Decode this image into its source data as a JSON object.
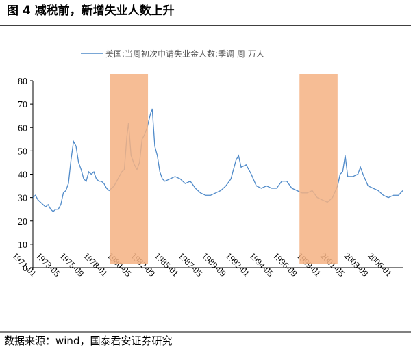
{
  "chart_data": {
    "type": "line",
    "title": "图 4    减税前，新增失业人数上升",
    "source": "数据来源：wind，国泰君安证券研究",
    "x": [
      "1971-01",
      "1971-04",
      "1971-07",
      "1971-10",
      "1972-01",
      "1972-04",
      "1972-07",
      "1972-10",
      "1973-01",
      "1973-04",
      "1973-07",
      "1973-10",
      "1974-01",
      "1974-04",
      "1974-07",
      "1974-10",
      "1975-01",
      "1975-04",
      "1975-07",
      "1975-10",
      "1976-01",
      "1976-04",
      "1976-07",
      "1976-10",
      "1977-01",
      "1977-04",
      "1977-07",
      "1977-10",
      "1978-01",
      "1978-04",
      "1978-07",
      "1978-10",
      "1979-01",
      "1979-04",
      "1979-07",
      "1979-10",
      "1980-01",
      "1980-04",
      "1980-06",
      "1980-09",
      "1981-01",
      "1981-04",
      "1981-07",
      "1981-10",
      "1982-01",
      "1982-04",
      "1982-08",
      "1982-10",
      "1983-01",
      "1983-04",
      "1983-07",
      "1983-10",
      "1984-01",
      "1984-07",
      "1985-01",
      "1985-07",
      "1986-01",
      "1986-07",
      "1987-01",
      "1987-07",
      "1988-01",
      "1988-07",
      "1989-01",
      "1989-07",
      "1990-01",
      "1990-07",
      "1991-01",
      "1991-04",
      "1991-07",
      "1992-01",
      "1992-04",
      "1992-07",
      "1993-01",
      "1993-07",
      "1994-01",
      "1994-07",
      "1995-01",
      "1995-07",
      "1996-01",
      "1996-07",
      "1997-01",
      "1997-07",
      "1998-01",
      "1998-07",
      "1999-01",
      "1999-07",
      "2000-01",
      "2000-07",
      "2001-01",
      "2001-04",
      "2001-07",
      "2001-10",
      "2002-01",
      "2002-07",
      "2003-01",
      "2003-04",
      "2003-07",
      "2004-01",
      "2004-07",
      "2005-01",
      "2005-07",
      "2006-01",
      "2006-07",
      "2007-01",
      "2007-06"
    ],
    "series": [
      {
        "name": "美国:当周初次申请失业金人数:季调 周 万人",
        "color": "#4f8ac9",
        "values": [
          30,
          31,
          29,
          28,
          27,
          26,
          27,
          25,
          24,
          25,
          25,
          27,
          32,
          33,
          36,
          46,
          54,
          52,
          45,
          42,
          38,
          37,
          41,
          40,
          41,
          38,
          37,
          37,
          36,
          34,
          33,
          34,
          35,
          37,
          39,
          41,
          42,
          56,
          62,
          48,
          44,
          42,
          45,
          55,
          57,
          60,
          66,
          68,
          52,
          48,
          41,
          38,
          37,
          38,
          39,
          38,
          36,
          37,
          34,
          32,
          31,
          31,
          32,
          33,
          35,
          38,
          46,
          48,
          43,
          44,
          42,
          40,
          35,
          34,
          35,
          34,
          34,
          37,
          37,
          34,
          33,
          32,
          32,
          33,
          30,
          29,
          28,
          30,
          35,
          40,
          41,
          48,
          39,
          39,
          40,
          43,
          40,
          35,
          34,
          33,
          31,
          30,
          31,
          31,
          33
        ]
      }
    ],
    "shaded_periods": [
      [
        "1978-08",
        "1982-05"
      ],
      [
        "1997-04",
        "2001-01"
      ]
    ],
    "shade_color": "#f4b183",
    "xlim": [
      "1971-01",
      "2007-06"
    ],
    "xticks": [
      "1971-01",
      "1973-05",
      "1975-09",
      "1978-01",
      "1980-05",
      "1982-09",
      "1985-01",
      "1987-05",
      "1989-09",
      "1992-01",
      "1994-05",
      "1996-09",
      "1999-01",
      "2001-05",
      "2003-09",
      "2006-01"
    ],
    "ylim": [
      0,
      80
    ],
    "yticks": [
      0,
      10,
      20,
      30,
      40,
      50,
      60,
      70,
      80
    ]
  }
}
